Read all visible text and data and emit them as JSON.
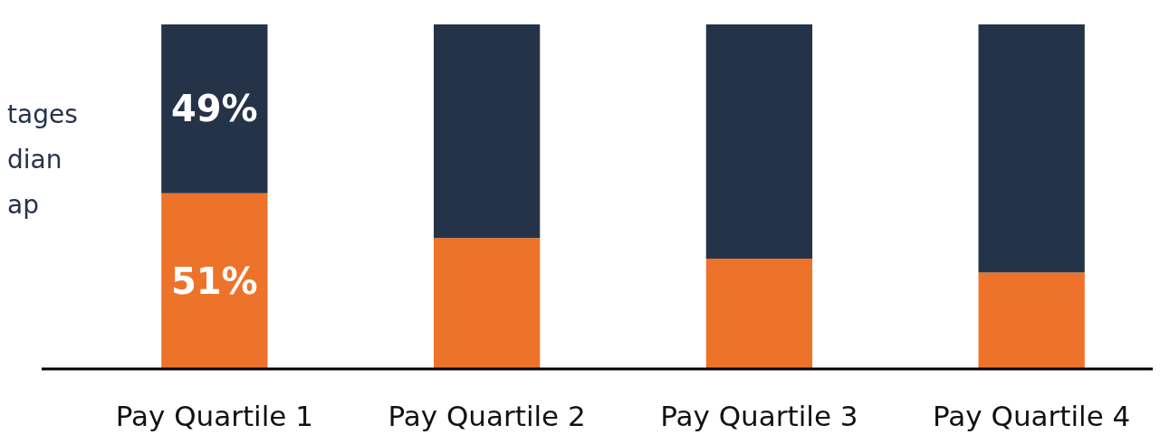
{
  "chart_data": {
    "type": "bar",
    "stacked": true,
    "categories": [
      "Pay Quartile 1",
      "Pay Quartile 2",
      "Pay Quartile 3",
      "Pay Quartile 4"
    ],
    "series": [
      {
        "color": "#ed732b",
        "values": [
          51,
          38,
          32,
          28
        ],
        "value_labels": [
          "51%",
          null,
          null,
          null
        ]
      },
      {
        "color": "#253349",
        "values": [
          49,
          62,
          68,
          72
        ],
        "value_labels": [
          "49%",
          null,
          null,
          null
        ]
      }
    ],
    "annotations": [
      "tages",
      "dian",
      "ap"
    ]
  }
}
